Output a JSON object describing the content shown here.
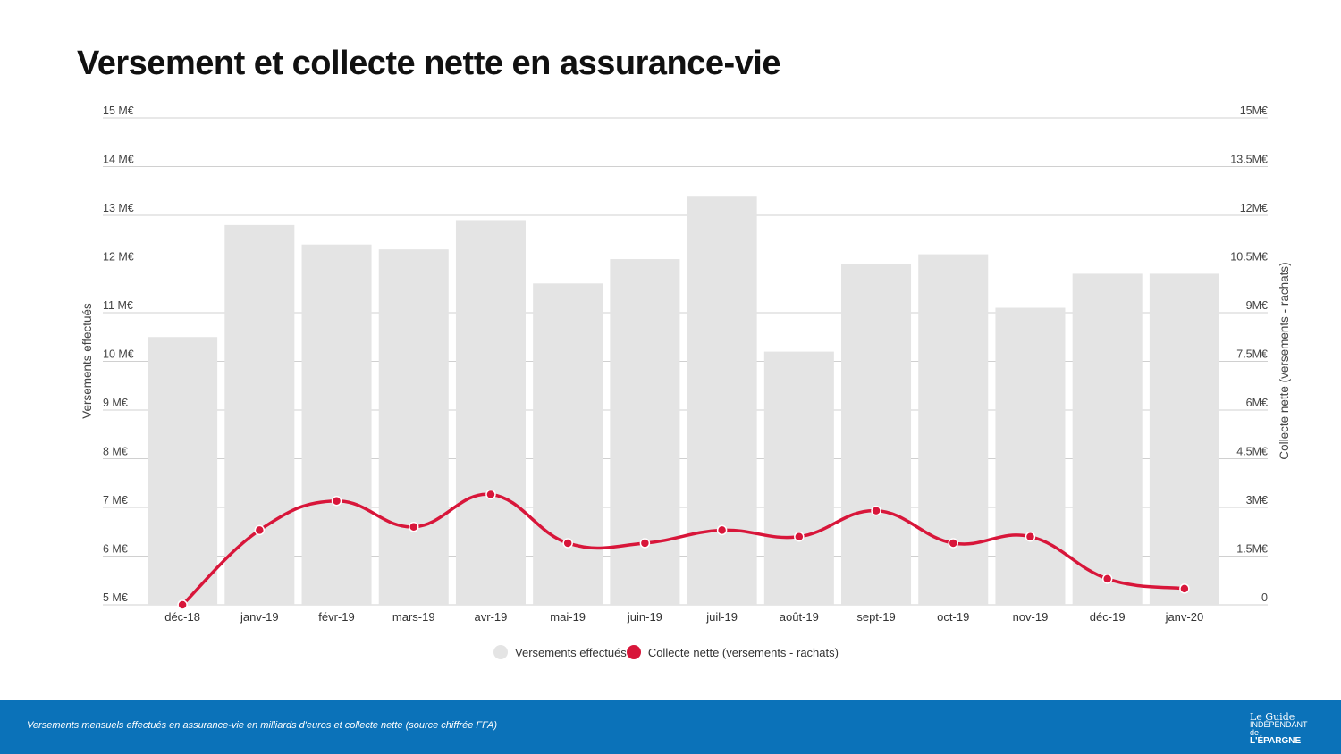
{
  "title": "Versement et collecte nette en assurance-vie",
  "chart_data": {
    "type": "bar+line",
    "categories": [
      "déc-18",
      "janv-19",
      "févr-19",
      "mars-19",
      "avr-19",
      "mai-19",
      "juin-19",
      "juil-19",
      "août-19",
      "sept-19",
      "oct-19",
      "nov-19",
      "déc-19",
      "janv-20"
    ],
    "series": [
      {
        "name": "Versements effectués",
        "type": "bar",
        "axis": "left",
        "color": "#e4e4e4",
        "values": [
          10.5,
          12.8,
          12.4,
          12.3,
          12.9,
          11.6,
          12.1,
          13.4,
          10.2,
          12.0,
          12.2,
          11.1,
          11.8,
          11.8
        ]
      },
      {
        "name": "Collecte nette (versements - rachats)",
        "type": "line",
        "axis": "right",
        "color": "#d8163a",
        "values": [
          0,
          2.3,
          3.2,
          2.4,
          3.4,
          1.9,
          1.9,
          2.3,
          2.1,
          2.9,
          1.9,
          2.1,
          0.8,
          0.5
        ]
      }
    ],
    "ylabel": "Versements effectués",
    "y2label": "Collecte nette (versements - rachats)",
    "ylim": [
      5,
      15
    ],
    "y2lim": [
      0,
      15
    ],
    "yticks": [
      "5 M€",
      "6 M€",
      "7 M€",
      "8 M€",
      "9 M€",
      "10 M€",
      "11 M€",
      "12 M€",
      "13 M€",
      "14 M€",
      "15 M€"
    ],
    "y2ticks": [
      "0",
      "1.5M€",
      "3M€",
      "4.5M€",
      "6M€",
      "7.5M€",
      "9M€",
      "10.5M€",
      "12M€",
      "13.5M€",
      "15M€"
    ],
    "grid": true,
    "legend": "bottom"
  },
  "footer": {
    "caption": "Versements mensuels effectués en assurance-vie en milliards d'euros et collecte nette (source chiffrée FFA)",
    "logo_text": [
      "Le Guide",
      "INDÉPENDANT de",
      "L'ÉPARGNE"
    ]
  }
}
